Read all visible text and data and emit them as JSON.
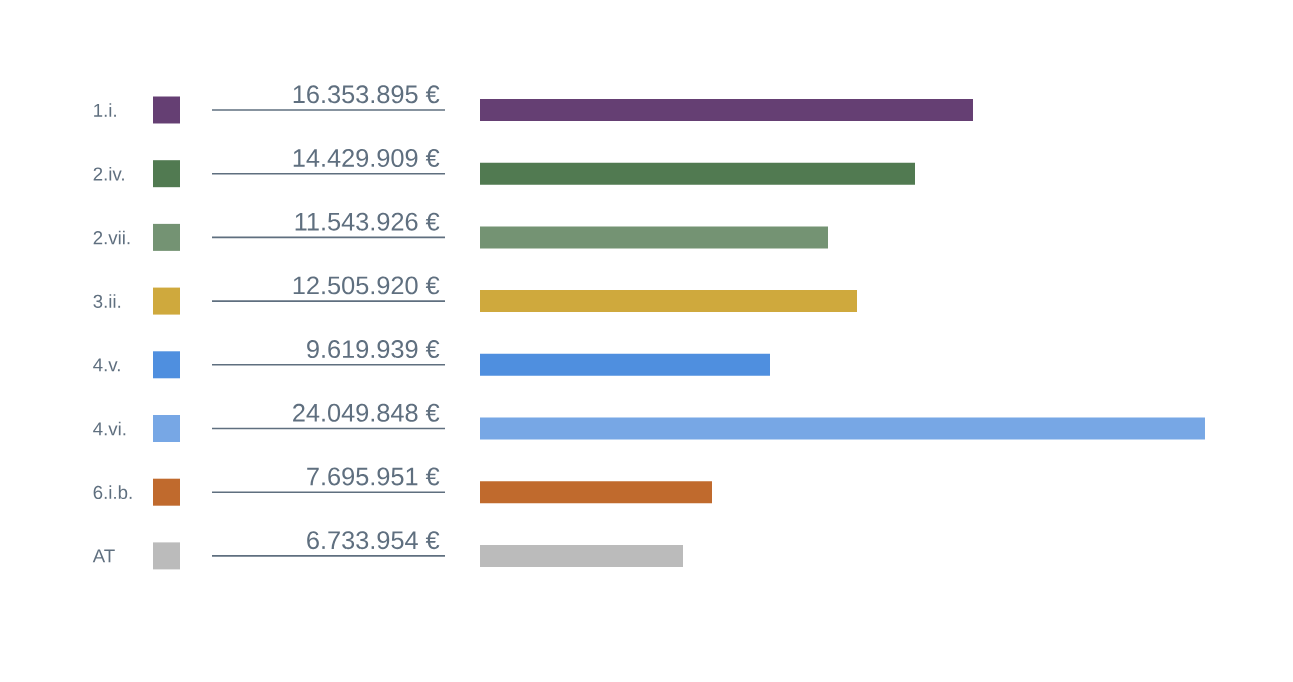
{
  "chart_data": {
    "type": "bar",
    "orientation": "horizontal",
    "categories": [
      "1.i.",
      "2.iv.",
      "2.vii.",
      "3.ii.",
      "4.v.",
      "4.vi.",
      "6.i.b.",
      "AT"
    ],
    "values": [
      16353895,
      14429909,
      11543926,
      12505920,
      9619939,
      24049848,
      7695951,
      6733954
    ],
    "value_labels": [
      "16.353.895 €",
      "14.429.909 €",
      "11.543.926 €",
      "12.505.920 €",
      "9.619.939 €",
      "24.049.848 €",
      "7.695.951 €",
      "6.733.954 €"
    ],
    "colors": [
      "#653f73",
      "#517a51",
      "#749373",
      "#cfa93d",
      "#4f8fdf",
      "#77a7e5",
      "#c06a2d",
      "#bbbbbb"
    ]
  }
}
